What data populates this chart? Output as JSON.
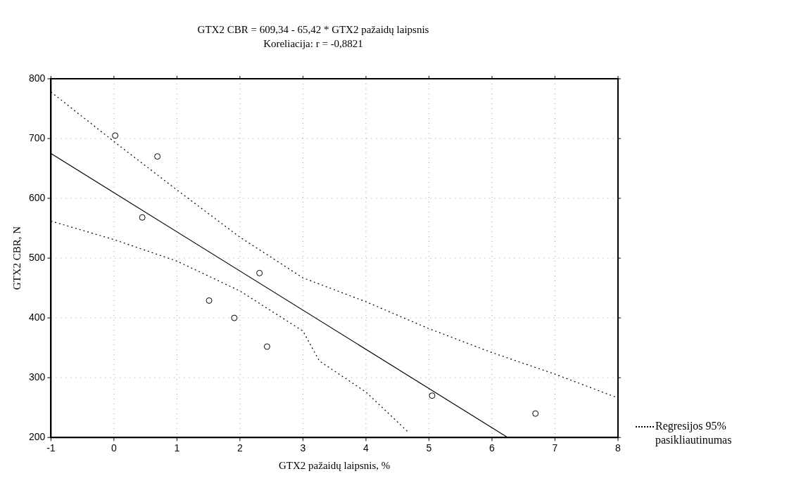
{
  "chart_data": {
    "type": "scatter",
    "title": "GTX2 CBR = 609,34 - 65,42 * GTX2 pažaidų laipsnis",
    "subtitle": "Koreliacija: r = -0,8821",
    "xlabel": "GTX2 pažaidų laipsnis, %",
    "ylabel": "GTX2 CBR, N",
    "xlim": [
      -1,
      8
    ],
    "xticks": [
      -1,
      0,
      1,
      2,
      3,
      4,
      5,
      6,
      7,
      8
    ],
    "ylim": [
      200,
      800
    ],
    "yticks": [
      200,
      300,
      400,
      500,
      600,
      700,
      800
    ],
    "grid": true,
    "legend": "bottom right",
    "series": [
      {
        "marker": "circle",
        "color": "#000000",
        "x": [
          0.02,
          0.69,
          0.45,
          2.31,
          1.51,
          1.91,
          2.43,
          5.05,
          6.69
        ],
        "values": [
          705,
          670,
          568,
          475,
          429,
          400,
          352,
          270,
          240
        ]
      },
      {
        "type": "line",
        "marker": "none",
        "color": "#000000",
        "line_style": "solid",
        "x": [
          -1,
          6.25
        ],
        "values": [
          675,
          200
        ]
      },
      {
        "type": "line",
        "marker": "none",
        "name": "Regresijos 95% pasikliautinumas",
        "color": "#000000",
        "line_style": "dotted",
        "x": [
          -1,
          0,
          1,
          2,
          3,
          4,
          5,
          6,
          7,
          8
        ],
        "values": [
          778,
          695,
          614,
          535,
          467,
          427,
          382,
          342,
          306,
          266
        ]
      },
      {
        "type": "line",
        "marker": "none",
        "color": "#000000",
        "line_style": "dotted",
        "x": [
          -1,
          0,
          1,
          2,
          3,
          3.26,
          4,
          4.67
        ],
        "values": [
          562,
          531,
          495,
          445,
          378,
          328,
          276,
          209
        ]
      }
    ]
  }
}
